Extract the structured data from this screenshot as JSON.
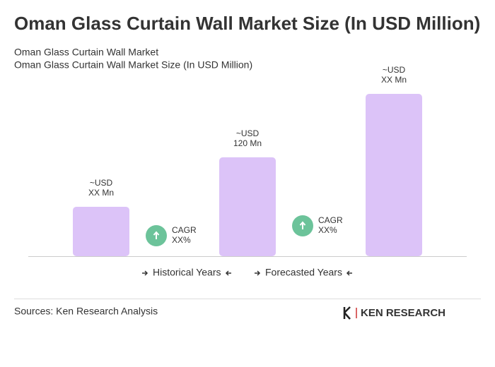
{
  "chart_data": {
    "type": "bar",
    "title": "Oman Glass Curtain Wall Market Size (In USD Million)",
    "subtitle": [
      "Oman Glass Curtain Wall Market",
      "Oman Glass Curtain Wall Market Size (In USD Million)"
    ],
    "values": [
      60,
      120,
      197
    ],
    "value_labels": [
      [
        "~USD",
        "XX Mn"
      ],
      [
        "~USD",
        "120 Mn"
      ],
      [
        "~USD",
        "XX Mn"
      ]
    ],
    "color": "#dcc3f8",
    "annotations": [
      [
        "CAGR",
        "XX%"
      ],
      [
        "CAGR",
        "XX%"
      ]
    ],
    "annotation_color": "#6cc39a",
    "legend": [
      "Historical Years",
      "Forecasted Years"
    ],
    "source": "Sources: Ken Research Analysis",
    "logo": "KEN RESEARCH"
  }
}
